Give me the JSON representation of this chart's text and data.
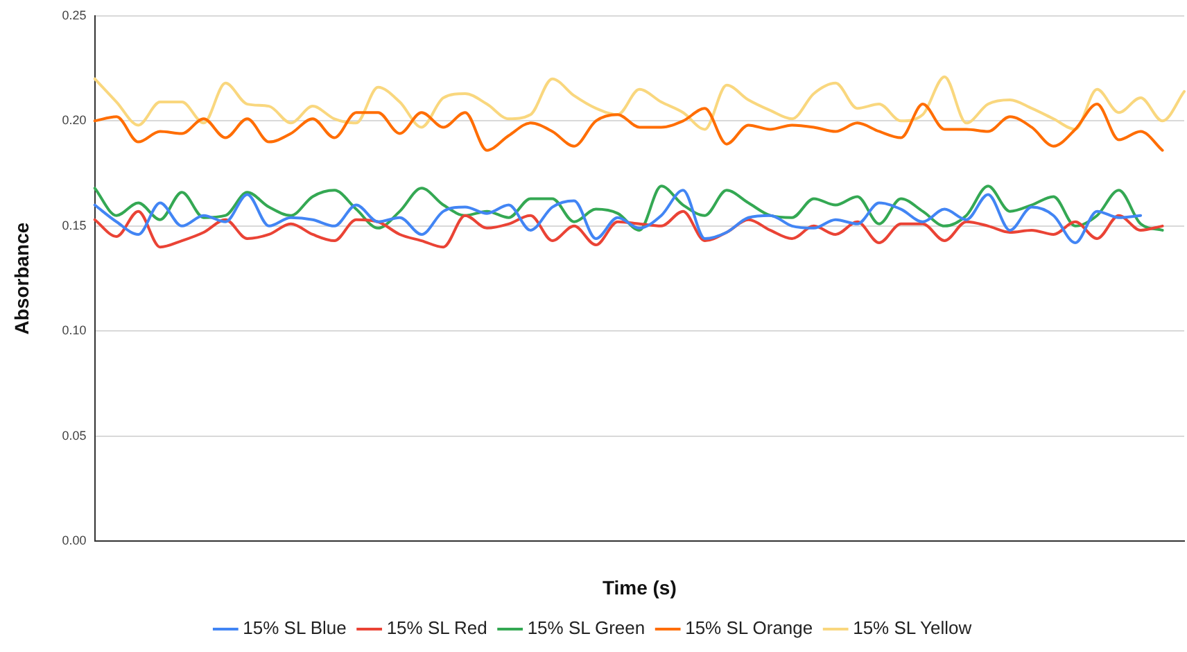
{
  "chart_data": {
    "type": "line",
    "xlabel": "Time (s)",
    "ylabel": "Absorbance",
    "categories": [
      null,
      null,
      null,
      null,
      null,
      null,
      null,
      null,
      null,
      null,
      null,
      null,
      null,
      null,
      null,
      null,
      null,
      null,
      null,
      null,
      null,
      null,
      null,
      null,
      null,
      null,
      null,
      null,
      null,
      null,
      null,
      null,
      null,
      null,
      null,
      null,
      null,
      null,
      null,
      null,
      null,
      null,
      null,
      null,
      null,
      null,
      null,
      null,
      null,
      null,
      null
    ],
    "ylim": [
      0,
      0.25
    ],
    "yticks": [
      {
        "value": 0,
        "label": "0.00"
      },
      {
        "value": 0.05,
        "label": "0.05"
      },
      {
        "value": 0.1,
        "label": "0.10"
      },
      {
        "value": 0.15,
        "label": "0.15"
      },
      {
        "value": 0.2,
        "label": "0.20"
      },
      {
        "value": 0.25,
        "label": "0.25"
      }
    ],
    "grid": "y",
    "legend": "bottom",
    "marker": "none",
    "line_style": "solid",
    "tick_labels": "y",
    "series": [
      {
        "name": "15% SL Blue",
        "color": "#4285f4",
        "values": [
          0.16,
          0.152,
          0.146,
          0.161,
          0.15,
          0.155,
          0.152,
          0.165,
          0.15,
          0.154,
          0.153,
          0.15,
          0.16,
          0.152,
          0.154,
          0.146,
          0.157,
          0.159,
          0.156,
          0.16,
          0.148,
          0.159,
          0.162,
          0.144,
          0.154,
          0.149,
          0.155,
          0.167,
          0.144,
          0.147,
          0.154,
          0.155,
          0.15,
          0.149,
          0.153,
          0.151,
          0.161,
          0.158,
          0.152,
          0.158,
          0.153,
          0.165,
          0.148,
          0.159,
          0.155,
          0.142,
          0.157,
          0.154,
          0.155,
          null,
          null
        ]
      },
      {
        "name": "15% SL Red",
        "color": "#ea4335",
        "values": [
          0.153,
          0.145,
          0.157,
          0.14,
          0.143,
          0.147,
          0.153,
          0.144,
          0.146,
          0.151,
          0.146,
          0.143,
          0.153,
          0.152,
          0.146,
          0.143,
          0.14,
          0.155,
          0.149,
          0.151,
          0.155,
          0.143,
          0.15,
          0.141,
          0.152,
          0.151,
          0.15,
          0.157,
          0.143,
          0.147,
          0.153,
          0.148,
          0.144,
          0.15,
          0.146,
          0.152,
          0.142,
          0.151,
          0.151,
          0.143,
          0.152,
          0.15,
          0.147,
          0.148,
          0.146,
          0.152,
          0.144,
          0.155,
          0.148,
          0.15,
          null
        ]
      },
      {
        "name": "15% SL Green",
        "color": "#34a853",
        "values": [
          0.168,
          0.155,
          0.161,
          0.153,
          0.166,
          0.154,
          0.155,
          0.166,
          0.159,
          0.155,
          0.164,
          0.167,
          0.158,
          0.149,
          0.157,
          0.168,
          0.16,
          0.155,
          0.157,
          0.154,
          0.163,
          0.163,
          0.152,
          0.158,
          0.156,
          0.148,
          0.169,
          0.16,
          0.155,
          0.167,
          0.161,
          0.155,
          0.154,
          0.163,
          0.16,
          0.164,
          0.151,
          0.163,
          0.157,
          0.15,
          0.155,
          0.169,
          0.157,
          0.16,
          0.164,
          0.15,
          0.155,
          0.167,
          0.151,
          0.148,
          null
        ]
      },
      {
        "name": "15% SL Orange",
        "color": "#ff6d01",
        "values": [
          0.2,
          0.202,
          0.19,
          0.195,
          0.194,
          0.201,
          0.192,
          0.201,
          0.19,
          0.194,
          0.201,
          0.192,
          0.204,
          0.204,
          0.194,
          0.204,
          0.197,
          0.204,
          0.186,
          0.193,
          0.199,
          0.195,
          0.188,
          0.2,
          0.203,
          0.197,
          0.197,
          0.2,
          0.206,
          0.189,
          0.198,
          0.196,
          0.198,
          0.197,
          0.195,
          0.199,
          0.195,
          0.192,
          0.208,
          0.196,
          0.196,
          0.195,
          0.202,
          0.197,
          0.188,
          0.196,
          0.208,
          0.191,
          0.195,
          0.186,
          null
        ]
      },
      {
        "name": "15% SL Yellow",
        "color": "#f9d77e",
        "values": [
          0.22,
          0.209,
          0.198,
          0.209,
          0.209,
          0.199,
          0.218,
          0.208,
          0.207,
          0.199,
          0.207,
          0.201,
          0.199,
          0.216,
          0.209,
          0.197,
          0.211,
          0.213,
          0.208,
          0.201,
          0.203,
          0.22,
          0.212,
          0.206,
          0.203,
          0.215,
          0.209,
          0.204,
          0.196,
          0.217,
          0.21,
          0.205,
          0.201,
          0.213,
          0.218,
          0.206,
          0.208,
          0.2,
          0.203,
          0.221,
          0.199,
          0.208,
          0.21,
          0.206,
          0.201,
          0.196,
          0.215,
          0.204,
          0.211,
          0.2,
          0.214
        ]
      }
    ]
  }
}
